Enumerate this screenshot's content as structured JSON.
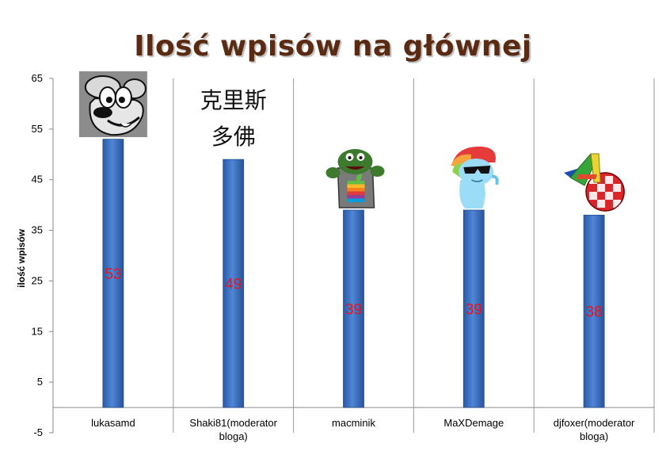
{
  "chart_data": {
    "type": "bar",
    "title": "Ilość wpisów na głównej",
    "ylabel": "ilość wpisów",
    "xlabel": "",
    "ylim": [
      -5,
      65
    ],
    "yticks": [
      -5,
      5,
      15,
      25,
      35,
      45,
      55,
      65
    ],
    "grid": "vertical-category-lines",
    "categories": [
      "lukasamd",
      "Shaki81(moderator bloga)",
      "macminik",
      "MaXDemage",
      "djfoxer(moderator bloga)"
    ],
    "values": [
      53,
      49,
      39,
      39,
      38
    ],
    "data_labels": [
      "53",
      "49",
      "39",
      "39",
      "38"
    ],
    "colors": {
      "bar": "#3d74c4",
      "bar_dark": "#234f96",
      "value_label": "#e8141c",
      "title": "#5a2a12"
    },
    "avatars": [
      {
        "category": "lukasamd",
        "icon": "cartoon-dog-avatar"
      },
      {
        "category": "Shaki81(moderator bloga)",
        "icon": "chinese-characters-avatar",
        "text": "克里斯多佛"
      },
      {
        "category": "macminik",
        "icon": "green-monster-apple-logo-avatar"
      },
      {
        "category": "MaXDemage",
        "icon": "blue-pony-sunglasses-avatar"
      },
      {
        "category": "djfoxer(moderator bloga)",
        "icon": "amiga-a-logo-avatar"
      }
    ]
  }
}
